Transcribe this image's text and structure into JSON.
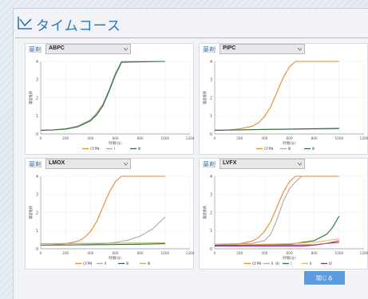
{
  "window": {
    "title": "タイムコース",
    "title_color": "#2f73b8",
    "close_label": "閉じる",
    "accent": "#5b9be0"
  },
  "panels": [
    {
      "drug_label": "薬剤",
      "drug_value": "ABPC"
    },
    {
      "drug_label": "薬剤",
      "drug_value": "PIPC"
    },
    {
      "drug_label": "薬剤",
      "drug_value": "LMOX"
    },
    {
      "drug_label": "薬剤",
      "drug_value": "LVFX"
    }
  ],
  "chart_data": [
    {
      "type": "line",
      "drug": "ABPC",
      "ylabel": "濃度推移",
      "xlabel": "時間(分)",
      "xticks": [
        "0",
        "200",
        "400",
        "600",
        "800",
        "1000",
        "1200"
      ],
      "yticks": [
        "0",
        "1",
        "2",
        "3",
        "4"
      ],
      "xlim": [
        0,
        1200
      ],
      "ylim": [
        0,
        4
      ],
      "grid": true,
      "legend_position": "bottom",
      "series": [
        {
          "name": "CFPN",
          "color": "#e8892b",
          "x": [
            0,
            100,
            200,
            300,
            400,
            450,
            500,
            550,
            600,
            650,
            1000
          ],
          "y": [
            0.2,
            0.22,
            0.28,
            0.42,
            0.75,
            1.1,
            1.6,
            2.4,
            3.3,
            4.0,
            4.0
          ]
        },
        {
          "name": "Ⅰ",
          "color": "#a9a9a9",
          "x": [
            0,
            100,
            200,
            300,
            400,
            450,
            500,
            550,
            600,
            650,
            1000
          ],
          "y": [
            0.21,
            0.23,
            0.29,
            0.44,
            0.78,
            1.15,
            1.65,
            2.45,
            3.35,
            4.0,
            4.0
          ]
        },
        {
          "name": "Ⅲ",
          "color": "#2b6e3a",
          "x": [
            0,
            100,
            200,
            300,
            400,
            450,
            500,
            550,
            600,
            650,
            1000
          ],
          "y": [
            0.2,
            0.22,
            0.27,
            0.4,
            0.72,
            1.05,
            1.55,
            2.35,
            3.25,
            3.95,
            4.0
          ]
        }
      ]
    },
    {
      "type": "line",
      "drug": "PIPC",
      "ylabel": "濃度推移",
      "xlabel": "時間(分)",
      "xticks": [
        "0",
        "200",
        "400",
        "600",
        "800",
        "1000",
        "1200"
      ],
      "yticks": [
        "0",
        "1",
        "2",
        "3",
        "4"
      ],
      "xlim": [
        0,
        1200
      ],
      "ylim": [
        0,
        4
      ],
      "grid": true,
      "legend_position": "bottom",
      "series": [
        {
          "name": "CFPN",
          "color": "#e8892b",
          "x": [
            0,
            100,
            200,
            300,
            350,
            400,
            450,
            500,
            550,
            600,
            650,
            1000
          ],
          "y": [
            0.2,
            0.22,
            0.28,
            0.42,
            0.6,
            0.95,
            1.5,
            2.3,
            3.1,
            3.7,
            4.0,
            4.0
          ]
        },
        {
          "name": "Ⅲ",
          "color": "#a9a9a9",
          "x": [
            0,
            1000
          ],
          "y": [
            0.22,
            0.28
          ]
        },
        {
          "name": "Ⅲ",
          "color": "#2b6e3a",
          "x": [
            0,
            200,
            400,
            600,
            800,
            1000
          ],
          "y": [
            0.2,
            0.22,
            0.25,
            0.27,
            0.29,
            0.31
          ]
        }
      ]
    },
    {
      "type": "line",
      "drug": "LMOX",
      "ylabel": "濃度推移",
      "xlabel": "時間(分)",
      "xticks": [
        "0",
        "200",
        "400",
        "600",
        "800",
        "1000",
        "1200"
      ],
      "yticks": [
        "0",
        "1",
        "2",
        "3",
        "4"
      ],
      "xlim": [
        0,
        1200
      ],
      "ylim": [
        0,
        4
      ],
      "grid": true,
      "legend_position": "bottom",
      "series": [
        {
          "name": "CFPN",
          "color": "#e8892b",
          "x": [
            0,
            100,
            200,
            300,
            350,
            400,
            450,
            500,
            550,
            600,
            650,
            1000
          ],
          "y": [
            0.2,
            0.22,
            0.28,
            0.42,
            0.6,
            0.95,
            1.5,
            2.3,
            3.1,
            3.7,
            4.0,
            4.0
          ]
        },
        {
          "name": "Ⅱ",
          "color": "#a9a9a9",
          "x": [
            0,
            300,
            500,
            600,
            700,
            800,
            900,
            1000
          ],
          "y": [
            0.2,
            0.22,
            0.28,
            0.35,
            0.47,
            0.7,
            1.1,
            1.75
          ]
        },
        {
          "name": "Ⅲ",
          "color": "#2b6e3a",
          "x": [
            0,
            400,
            800,
            1000
          ],
          "y": [
            0.2,
            0.22,
            0.25,
            0.28
          ]
        },
        {
          "name": "Ⅲ",
          "color": "#b3b36a",
          "x": [
            0,
            1000
          ],
          "y": [
            0.28,
            0.33
          ]
        }
      ]
    },
    {
      "type": "line",
      "drug": "LVFX",
      "ylabel": "濃度推移",
      "xlabel": "時間(分)",
      "xticks": [
        "0",
        "200",
        "400",
        "600",
        "800",
        "1000",
        "1200"
      ],
      "yticks": [
        "0",
        "1",
        "2",
        "3",
        "4"
      ],
      "xlim": [
        0,
        1200
      ],
      "ylim": [
        0,
        4
      ],
      "grid": true,
      "legend_position": "bottom",
      "series": [
        {
          "name": "CFPN",
          "color": "#e8892b",
          "x": [
            0,
            100,
            200,
            300,
            350,
            400,
            450,
            500,
            550,
            600,
            650,
            1000
          ],
          "y": [
            0.2,
            0.22,
            0.28,
            0.42,
            0.6,
            0.95,
            1.5,
            2.3,
            3.1,
            3.7,
            4.0,
            4.0
          ]
        },
        {
          "name": "Ⅱ（Ⅱ）",
          "color": "#a9a9a9",
          "x": [
            0,
            300,
            400,
            450,
            500,
            550,
            600,
            650,
            700
          ],
          "y": [
            0.25,
            0.3,
            0.45,
            0.8,
            1.6,
            2.6,
            3.3,
            3.7,
            4.0
          ]
        },
        {
          "name": "Ⅰ",
          "color": "#2b6e3a",
          "x": [
            0,
            600,
            800,
            900,
            950,
            1000
          ],
          "y": [
            0.2,
            0.25,
            0.45,
            0.8,
            1.2,
            1.8
          ]
        },
        {
          "name": "Ⅱ",
          "color": "#d8c060",
          "x": [
            0,
            600,
            800,
            900,
            1000
          ],
          "y": [
            0.2,
            0.28,
            0.35,
            0.45,
            0.55
          ]
        },
        {
          "name": "Ⅳ",
          "color": "#7a2a8a",
          "x": [
            0,
            700,
            800,
            900,
            1000
          ],
          "y": [
            0.15,
            0.15,
            0.2,
            0.3,
            0.35
          ]
        },
        {
          "name": "",
          "color": "#d05050",
          "x": [
            0,
            800,
            900,
            1000
          ],
          "y": [
            0.2,
            0.22,
            0.3,
            0.45
          ]
        }
      ]
    }
  ]
}
